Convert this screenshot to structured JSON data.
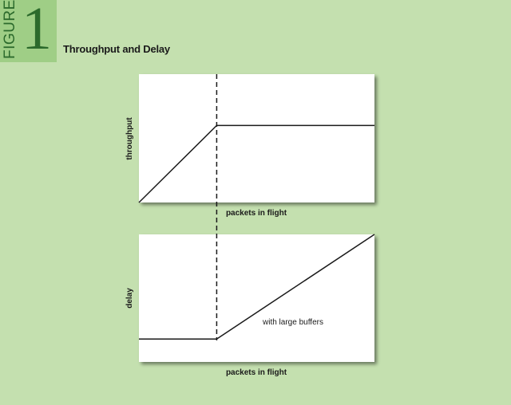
{
  "figure": {
    "word": "FIGURE",
    "number": "1",
    "title": "Throughput and Delay"
  },
  "colors": {
    "background": "#c4e0af",
    "badge": "#9fce86",
    "badge_text": "#2c6a2c",
    "panel": "#ffffff",
    "line": "#1a1a1a"
  },
  "chart_data": [
    {
      "type": "line",
      "title": "",
      "xlabel": "packets in flight",
      "ylabel": "throughput",
      "grid": false,
      "series": [
        {
          "x": [
            0,
            0.33,
            1.0
          ],
          "y": [
            0,
            0.6,
            0.6
          ]
        }
      ],
      "reference_lines": [
        {
          "orientation": "vertical",
          "x": 0.33,
          "style": "dashed"
        }
      ]
    },
    {
      "type": "line",
      "title": "",
      "xlabel": "packets in flight",
      "ylabel": "delay",
      "grid": false,
      "series": [
        {
          "x": [
            0,
            0.33,
            1.0
          ],
          "y": [
            0.18,
            0.18,
            1.0
          ]
        }
      ],
      "annotations": [
        {
          "text": "with large buffers"
        }
      ],
      "reference_lines": [
        {
          "orientation": "vertical",
          "x": 0.33,
          "style": "dashed"
        }
      ]
    }
  ]
}
